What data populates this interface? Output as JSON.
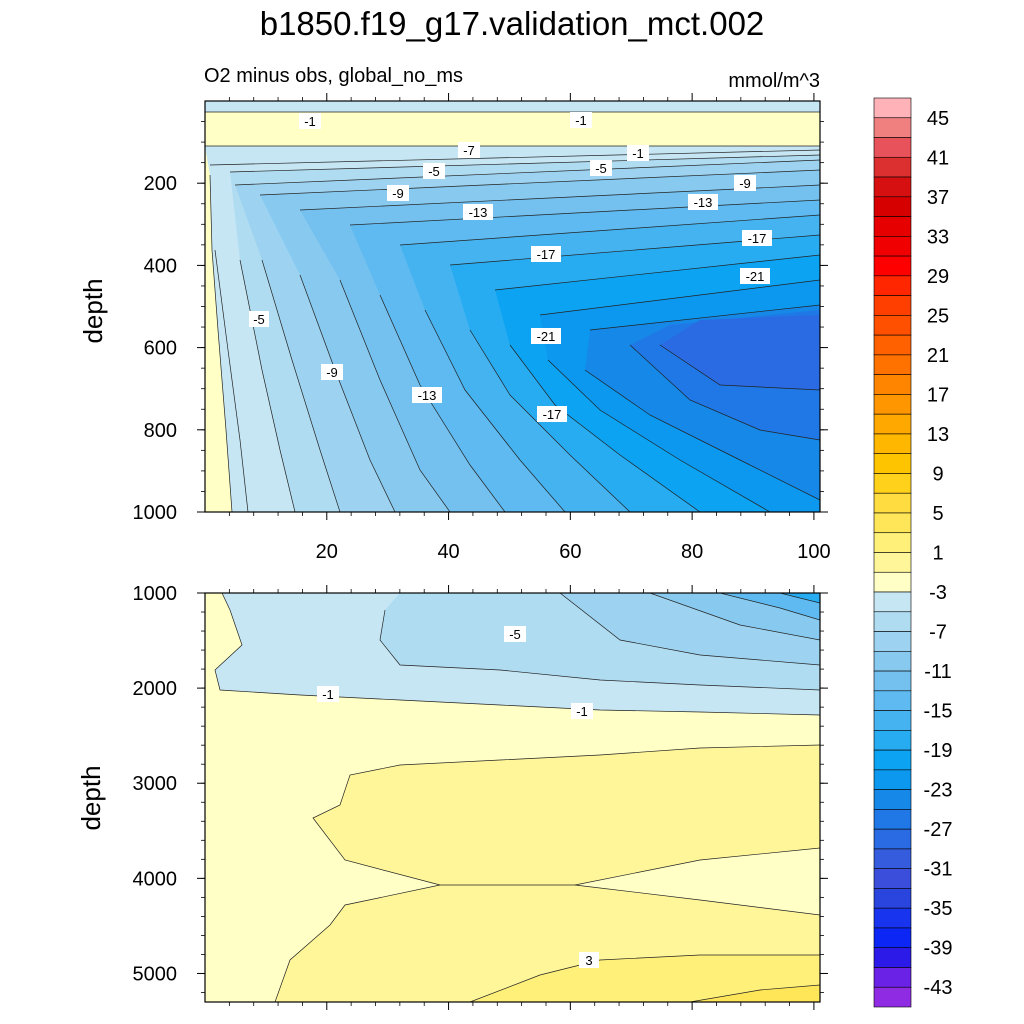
{
  "chart_data": [
    {
      "type": "contour",
      "panel": "upper",
      "title": "b1850.f19_g17.validation_mct.002",
      "subtitle_left": "O2 minus obs, global_no_ms",
      "subtitle_right": "mmol/m^3",
      "xlabel": "",
      "ylabel": "depth",
      "xlim": [
        0,
        101
      ],
      "ylim": [
        1000,
        0
      ],
      "xticks": [
        20,
        40,
        60,
        80,
        100
      ],
      "yticks": [
        200,
        400,
        600,
        800,
        1000
      ],
      "contour_labels": [
        -1,
        -1,
        -1,
        -7,
        -5,
        -5,
        -9,
        -9,
        -13,
        -13,
        -17,
        -17,
        -21,
        -21,
        -5,
        -9,
        -13,
        -17
      ]
    },
    {
      "type": "contour",
      "panel": "lower",
      "xlabel": "",
      "ylabel": "depth",
      "xlim": [
        0,
        101
      ],
      "ylim": [
        5300,
        1000
      ],
      "yticks": [
        1000,
        2000,
        3000,
        4000,
        5000
      ],
      "contour_labels": [
        -5,
        -1,
        -1,
        3
      ]
    }
  ],
  "colorbar": {
    "units": "mmol/m^3",
    "labels": [
      "45",
      "41",
      "37",
      "33",
      "29",
      "25",
      "21",
      "17",
      "13",
      "9",
      "5",
      "1",
      "-3",
      "-7",
      "-11",
      "-15",
      "-19",
      "-23",
      "-27",
      "-31",
      "-35",
      "-39",
      "-43"
    ],
    "levels": [
      47,
      45,
      43,
      41,
      39,
      37,
      35,
      33,
      31,
      29,
      27,
      25,
      23,
      21,
      19,
      17,
      15,
      13,
      11,
      9,
      7,
      5,
      3,
      1,
      -1,
      -3,
      -5,
      -7,
      -9,
      -11,
      -13,
      -15,
      -17,
      -19,
      -21,
      -23,
      -25,
      -27,
      -29,
      -31,
      -33,
      -35,
      -37,
      -39,
      -41,
      -43
    ],
    "colors": [
      "#ffb3b8",
      "#f08080",
      "#e8525a",
      "#dc2f2f",
      "#d61010",
      "#d60000",
      "#e60000",
      "#f00000",
      "#ff0000",
      "#ff2600",
      "#ff3f00",
      "#ff5000",
      "#ff6000",
      "#ff7200",
      "#ff8500",
      "#ff9600",
      "#ffa800",
      "#ffb700",
      "#ffc400",
      "#ffd11a",
      "#ffdc40",
      "#ffe658",
      "#fff07a",
      "#fff69a",
      "#ffffc6",
      "#c6e6f4",
      "#b0dcf2",
      "#9dd3f0",
      "#87c9ef",
      "#74c0ef",
      "#5ebaf0",
      "#44b3f0",
      "#27acf2",
      "#0ca3f2",
      "#0b98ee",
      "#1588e8",
      "#2078e6",
      "#2a6ae2",
      "#345cdd",
      "#3b4edb",
      "#2a44de",
      "#1834ef",
      "#0c26f6",
      "#2c1ae8",
      "#6a22e6",
      "#8f2be3"
    ]
  }
}
